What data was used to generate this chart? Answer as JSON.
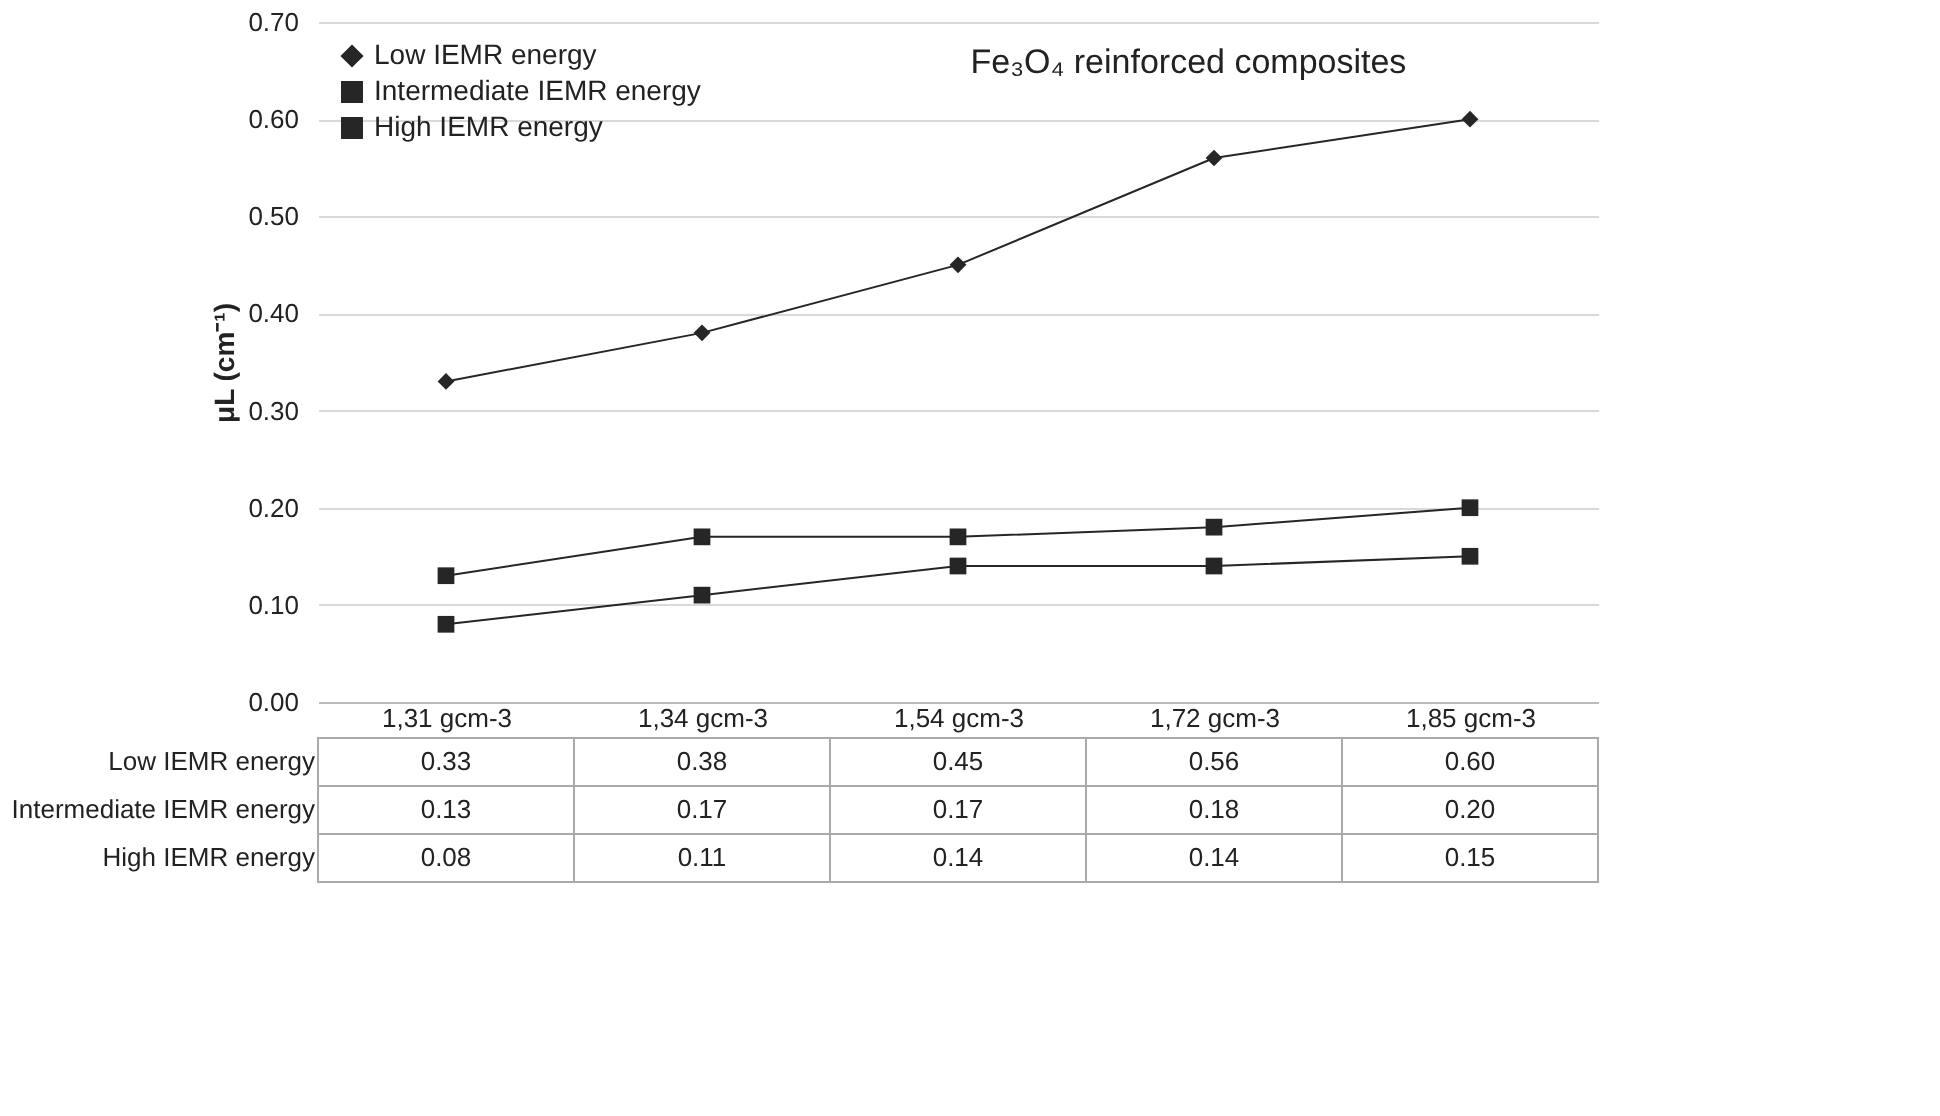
{
  "chart_data": {
    "type": "line",
    "title": "Fe₃O₄ reinforced composites",
    "ylabel": "μL (cm⁻¹)",
    "categories": [
      "1,31 gcm-3",
      "1,34 gcm-3",
      "1,54 gcm-3",
      "1,72 gcm-3",
      "1,85 gcm-3"
    ],
    "series": [
      {
        "name": "Low IEMR energy",
        "color": "#262626",
        "marker": "diamond",
        "values": [
          0.33,
          0.38,
          0.45,
          0.56,
          0.6
        ],
        "value_labels": [
          "0.33",
          "0.38",
          "0.45",
          "0.56",
          "0.60"
        ]
      },
      {
        "name": "Intermediate IEMR energy",
        "color": "#262626",
        "marker": "square",
        "values": [
          0.13,
          0.17,
          0.17,
          0.18,
          0.2
        ],
        "value_labels": [
          "0.13",
          "0.17",
          "0.17",
          "0.18",
          "0.20"
        ]
      },
      {
        "name": "High IEMR energy",
        "color": "#262626",
        "marker": "square",
        "values": [
          0.08,
          0.11,
          0.14,
          0.14,
          0.15
        ],
        "value_labels": [
          "0.08",
          "0.11",
          "0.14",
          "0.14",
          "0.15"
        ]
      }
    ],
    "ylim": [
      0,
      0.7
    ],
    "yticks": [
      {
        "value": 0,
        "label": "0.00"
      },
      {
        "value": 0.1,
        "label": "0.10"
      },
      {
        "value": 0.2,
        "label": "0.20"
      },
      {
        "value": 0.3,
        "label": "0.30"
      },
      {
        "value": 0.4,
        "label": "0.40"
      },
      {
        "value": 0.5,
        "label": "0.50"
      },
      {
        "value": 0.6,
        "label": "0.60"
      },
      {
        "value": 0.7,
        "label": "0.70"
      }
    ],
    "grid": "y",
    "legend": "top left",
    "line_style": "solid"
  }
}
